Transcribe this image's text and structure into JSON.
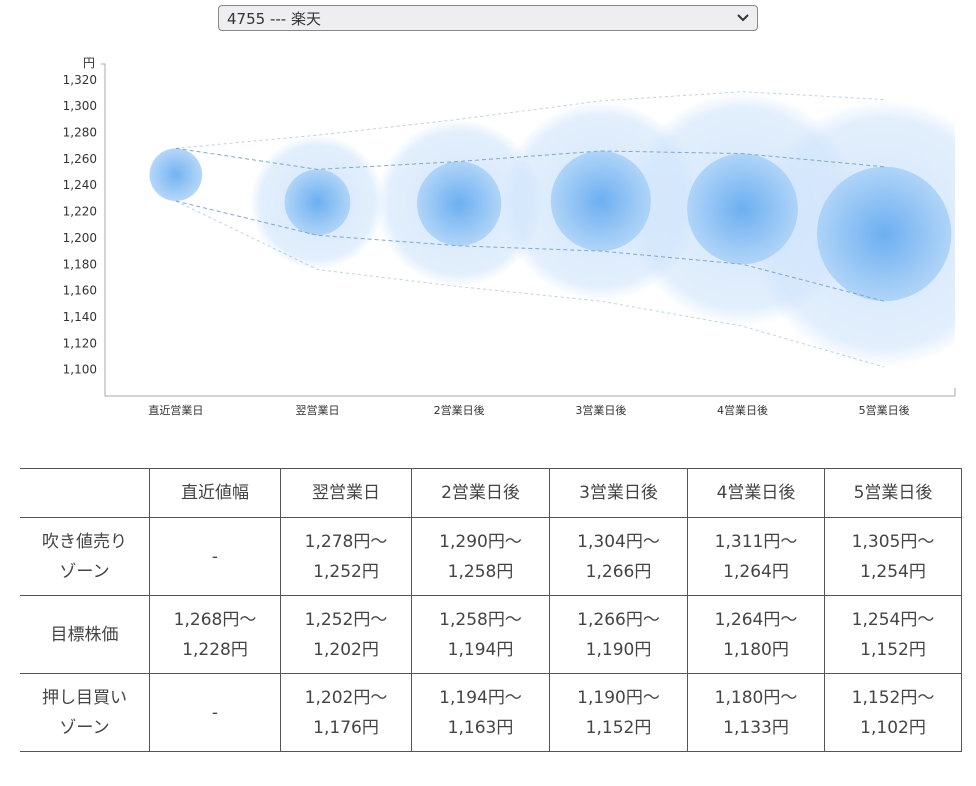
{
  "selector": {
    "value": "4755 --- 楽天",
    "icon": "chevron-down-icon"
  },
  "chart_data": {
    "type": "bubble-range",
    "ylabel": "円",
    "ylim": [
      1080,
      1332
    ],
    "yticks": [
      "1,100",
      "1,120",
      "1,140",
      "1,160",
      "1,180",
      "1,200",
      "1,220",
      "1,240",
      "1,260",
      "1,280",
      "1,300",
      "1,320"
    ],
    "categories": [
      "直近営業日",
      "翌営業日",
      "2営業日後",
      "3営業日後",
      "4営業日後",
      "5営業日後"
    ],
    "target_high": [
      1268,
      1252,
      1258,
      1266,
      1264,
      1254
    ],
    "target_low": [
      1228,
      1202,
      1194,
      1190,
      1180,
      1152
    ],
    "sell_zone_high": [
      null,
      1278,
      1290,
      1304,
      1311,
      1305
    ],
    "buy_zone_low": [
      null,
      1176,
      1163,
      1152,
      1133,
      1102
    ],
    "colors": {
      "bubble": "#6aaef0",
      "halo": "#cfe4fb",
      "line": "#7fa8c8"
    }
  },
  "table": {
    "headers": [
      "",
      "直近値幅",
      "翌営業日",
      "2営業日後",
      "3営業日後",
      "4営業日後",
      "5営業日後"
    ],
    "rows": [
      {
        "label": [
          "吹き値売り",
          "ゾーン"
        ],
        "cells": [
          [
            "-"
          ],
          [
            "1,278円～",
            "1,252円"
          ],
          [
            "1,290円～",
            "1,258円"
          ],
          [
            "1,304円～",
            "1,266円"
          ],
          [
            "1,311円～",
            "1,264円"
          ],
          [
            "1,305円～",
            "1,254円"
          ]
        ]
      },
      {
        "label": [
          "目標株価"
        ],
        "cells": [
          [
            "1,268円～",
            "1,228円"
          ],
          [
            "1,252円～",
            "1,202円"
          ],
          [
            "1,258円～",
            "1,194円"
          ],
          [
            "1,266円～",
            "1,190円"
          ],
          [
            "1,264円～",
            "1,180円"
          ],
          [
            "1,254円～",
            "1,152円"
          ]
        ]
      },
      {
        "label": [
          "押し目買い",
          "ゾーン"
        ],
        "cells": [
          [
            "-"
          ],
          [
            "1,202円～",
            "1,176円"
          ],
          [
            "1,194円～",
            "1,163円"
          ],
          [
            "1,190円～",
            "1,152円"
          ],
          [
            "1,180円～",
            "1,133円"
          ],
          [
            "1,152円～",
            "1,102円"
          ]
        ]
      }
    ]
  }
}
